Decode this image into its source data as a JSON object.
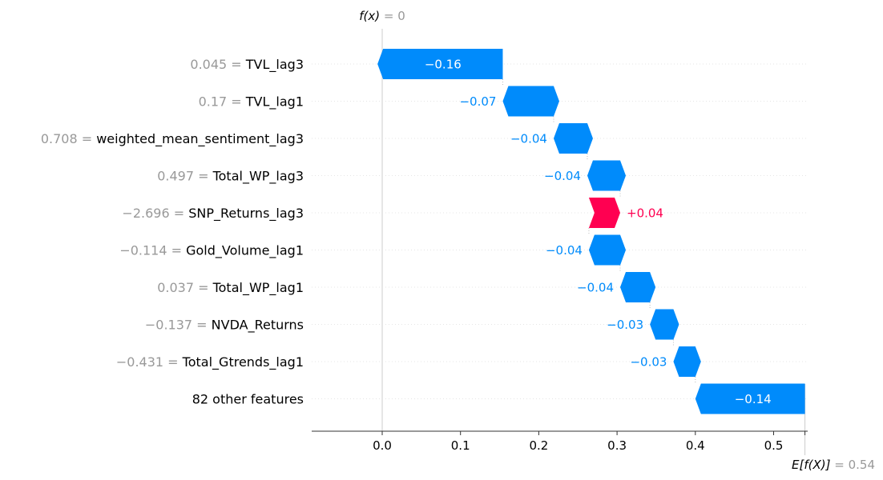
{
  "chart_data": {
    "type": "waterfall",
    "colors": {
      "negative": "#008bfb",
      "positive": "#ff0051",
      "feature_value": "#999999"
    },
    "xlim": [
      -0.09,
      0.545
    ],
    "x_ticks": [
      {
        "value": 0.0,
        "label": "0.0"
      },
      {
        "value": 0.1,
        "label": "0.1"
      },
      {
        "value": 0.2,
        "label": "0.2"
      },
      {
        "value": 0.3,
        "label": "0.3"
      },
      {
        "value": 0.4,
        "label": "0.4"
      },
      {
        "value": 0.5,
        "label": "0.5"
      }
    ],
    "fx": {
      "label": "f(x)",
      "value_text": "= 0",
      "value": 0.0
    },
    "base": {
      "label": "E[f(X)]",
      "value_text": "= 0.54",
      "value": 0.54
    },
    "features": [
      {
        "value": "0.045",
        "name": "TVL_lag3",
        "contribution": -0.16,
        "label": "−0.16"
      },
      {
        "value": "0.17",
        "name": "TVL_lag1",
        "contribution": -0.065,
        "label": "−0.07"
      },
      {
        "value": "0.708",
        "name": "weighted_mean_sentiment_lag3",
        "contribution": -0.043,
        "label": "−0.04"
      },
      {
        "value": "0.497",
        "name": "Total_WP_lag3",
        "contribution": -0.042,
        "label": "−0.04"
      },
      {
        "value": "−2.696",
        "name": "SNP_Returns_lag3",
        "contribution": 0.04,
        "label": "+0.04"
      },
      {
        "value": "−0.114",
        "name": "Gold_Volume_lag1",
        "contribution": -0.04,
        "label": "−0.04"
      },
      {
        "value": "0.037",
        "name": "Total_WP_lag1",
        "contribution": -0.038,
        "label": "−0.04"
      },
      {
        "value": "−0.137",
        "name": "NVDA_Returns",
        "contribution": -0.03,
        "label": "−0.03"
      },
      {
        "value": "−0.431",
        "name": "Total_Gtrends_lag1",
        "contribution": -0.028,
        "label": "−0.03"
      },
      {
        "value": "",
        "name": "82 other features",
        "contribution": -0.14,
        "label": "−0.14"
      }
    ]
  }
}
